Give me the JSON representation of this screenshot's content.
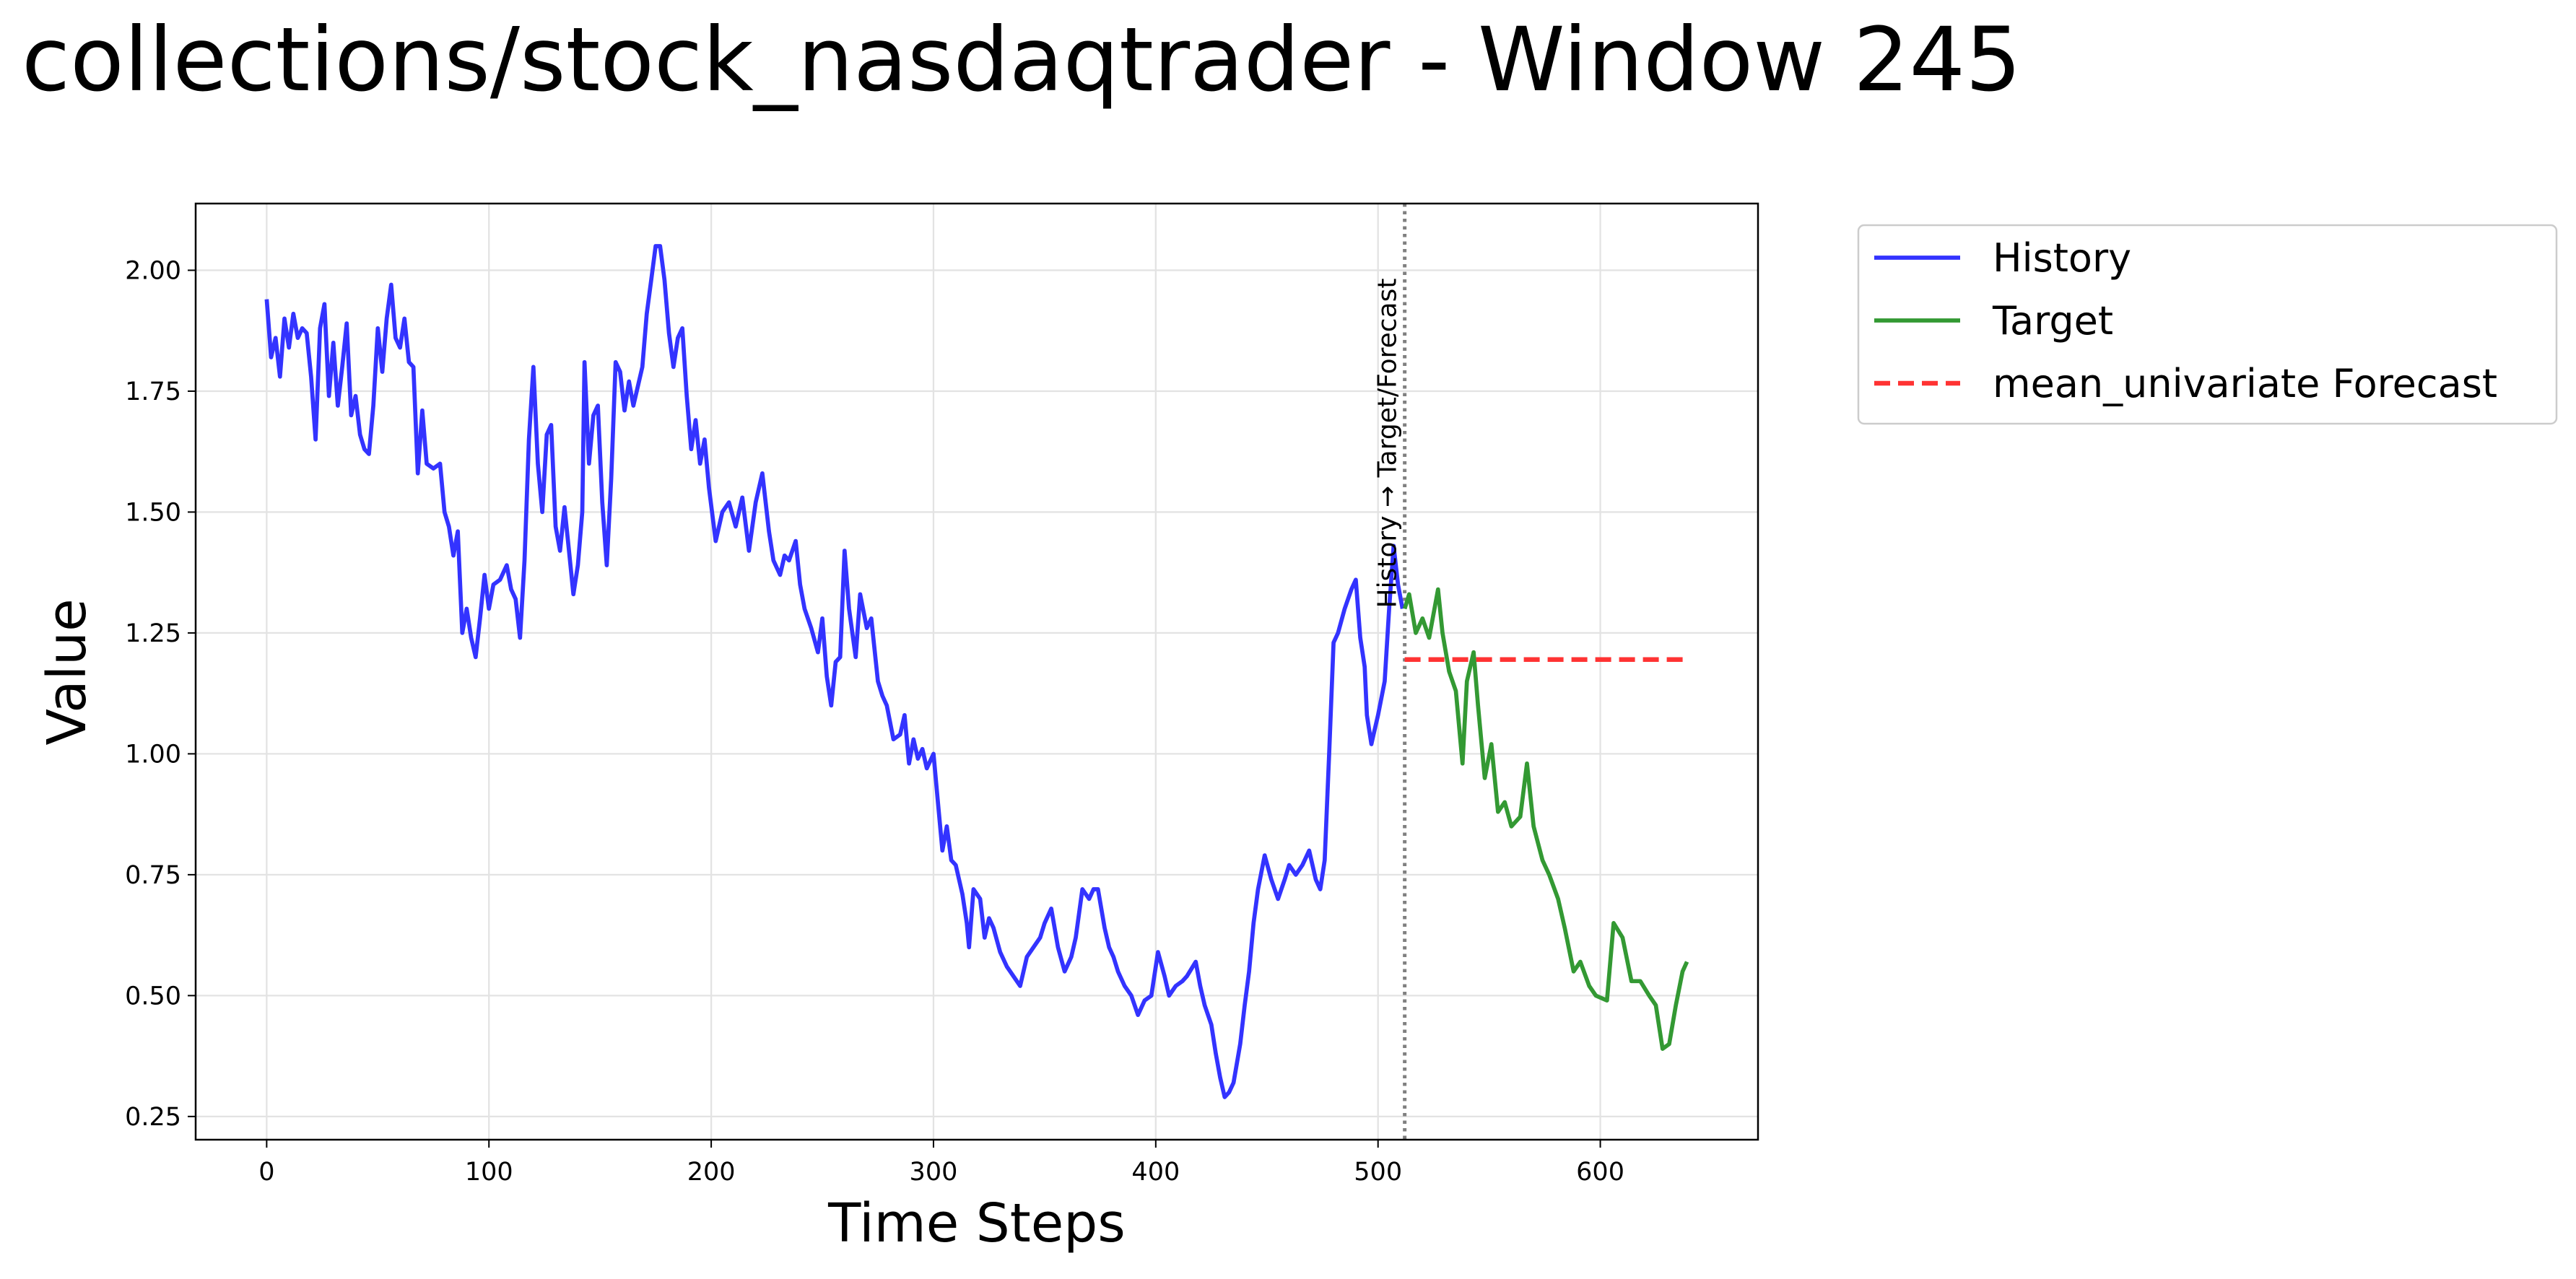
{
  "chart_data": {
    "type": "line",
    "title": "collections/stock_nasdaqtrader - Window 245",
    "x_label": "Time Steps",
    "y_label": "Value",
    "xlim": [
      -31.95,
      670.95
    ],
    "ylim": [
      0.202,
      2.138
    ],
    "xticks": [
      0,
      100,
      200,
      300,
      400,
      500,
      600
    ],
    "yticks": [
      {
        "value": 0.25,
        "label": "0.25"
      },
      {
        "value": 0.5,
        "label": "0.50"
      },
      {
        "value": 0.75,
        "label": "0.75"
      },
      {
        "value": 1.0,
        "label": "1.00"
      },
      {
        "value": 1.25,
        "label": "1.25"
      },
      {
        "value": 1.5,
        "label": "1.50"
      },
      {
        "value": 1.75,
        "label": "1.75"
      },
      {
        "value": 2.0,
        "label": "2.00"
      }
    ],
    "grid": true,
    "legend": "outside upper right",
    "vline": {
      "x": 512,
      "label": "History → Target/Forecast"
    },
    "series": [
      {
        "name": "History",
        "color": "#3333ff",
        "dash": false,
        "x": [
          0,
          2,
          4,
          6,
          8,
          10,
          12,
          14,
          16,
          18,
          20,
          22,
          24,
          26,
          28,
          30,
          32,
          34,
          36,
          38,
          40,
          42,
          44,
          46,
          48,
          50,
          52,
          54,
          56,
          58,
          60,
          62,
          64,
          66,
          68,
          70,
          72,
          75,
          78,
          80,
          82,
          84,
          86,
          88,
          90,
          92,
          94,
          96,
          98,
          100,
          102,
          105,
          108,
          110,
          112,
          114,
          116,
          118,
          120,
          122,
          124,
          126,
          128,
          130,
          132,
          134,
          136,
          138,
          140,
          142,
          143,
          145,
          147,
          149,
          151,
          153,
          155,
          157,
          159,
          161,
          163,
          165,
          167,
          169,
          171,
          173,
          175,
          177,
          179,
          181,
          183,
          185,
          187,
          189,
          191,
          193,
          195,
          197,
          199,
          202,
          205,
          208,
          211,
          214,
          217,
          220,
          223,
          226,
          228,
          231,
          233,
          235,
          238,
          240,
          242,
          245,
          248,
          250,
          252,
          254,
          256,
          258,
          260,
          262,
          265,
          267,
          270,
          272,
          275,
          277,
          279,
          282,
          285,
          287,
          289,
          291,
          293,
          295,
          297,
          300,
          302,
          304,
          306,
          308,
          310,
          313,
          315,
          316,
          318,
          321,
          323,
          325,
          327,
          330,
          333,
          336,
          339,
          342,
          345,
          348,
          350,
          353,
          356,
          359,
          362,
          364,
          367,
          370,
          372,
          374,
          377,
          379,
          381,
          383,
          386,
          389,
          392,
          395,
          398,
          401,
          404,
          406,
          409,
          412,
          414,
          418,
          420,
          422,
          425,
          427,
          429,
          431,
          433,
          435,
          438,
          440,
          442,
          444,
          446,
          449,
          452,
          455,
          458,
          460,
          463,
          466,
          469,
          472,
          474,
          476,
          478,
          480,
          482,
          485,
          488,
          490,
          492,
          494,
          495,
          497,
          498,
          500,
          503,
          505,
          507,
          509,
          511
        ],
        "values": [
          1.94,
          1.82,
          1.86,
          1.78,
          1.9,
          1.84,
          1.91,
          1.86,
          1.88,
          1.87,
          1.78,
          1.65,
          1.88,
          1.93,
          1.74,
          1.85,
          1.72,
          1.8,
          1.89,
          1.7,
          1.74,
          1.66,
          1.63,
          1.62,
          1.72,
          1.88,
          1.79,
          1.9,
          1.97,
          1.86,
          1.84,
          1.9,
          1.81,
          1.8,
          1.58,
          1.71,
          1.6,
          1.59,
          1.6,
          1.5,
          1.47,
          1.41,
          1.46,
          1.25,
          1.3,
          1.24,
          1.2,
          1.28,
          1.37,
          1.3,
          1.35,
          1.36,
          1.39,
          1.34,
          1.32,
          1.24,
          1.4,
          1.65,
          1.8,
          1.6,
          1.5,
          1.66,
          1.68,
          1.47,
          1.42,
          1.51,
          1.42,
          1.33,
          1.39,
          1.5,
          1.81,
          1.6,
          1.7,
          1.72,
          1.52,
          1.39,
          1.57,
          1.81,
          1.79,
          1.71,
          1.77,
          1.72,
          1.76,
          1.8,
          1.91,
          1.98,
          2.05,
          2.05,
          1.98,
          1.87,
          1.8,
          1.86,
          1.88,
          1.74,
          1.63,
          1.69,
          1.6,
          1.65,
          1.55,
          1.44,
          1.5,
          1.52,
          1.47,
          1.53,
          1.42,
          1.52,
          1.58,
          1.46,
          1.4,
          1.37,
          1.41,
          1.4,
          1.44,
          1.35,
          1.3,
          1.26,
          1.21,
          1.28,
          1.16,
          1.1,
          1.19,
          1.2,
          1.42,
          1.3,
          1.2,
          1.33,
          1.26,
          1.28,
          1.15,
          1.12,
          1.1,
          1.03,
          1.04,
          1.08,
          0.98,
          1.03,
          0.99,
          1.01,
          0.97,
          1.0,
          0.9,
          0.8,
          0.85,
          0.78,
          0.77,
          0.71,
          0.65,
          0.6,
          0.72,
          0.7,
          0.62,
          0.66,
          0.64,
          0.59,
          0.56,
          0.54,
          0.52,
          0.58,
          0.6,
          0.62,
          0.65,
          0.68,
          0.6,
          0.55,
          0.58,
          0.62,
          0.72,
          0.7,
          0.72,
          0.72,
          0.64,
          0.6,
          0.58,
          0.55,
          0.52,
          0.5,
          0.46,
          0.49,
          0.5,
          0.59,
          0.54,
          0.5,
          0.52,
          0.53,
          0.54,
          0.57,
          0.52,
          0.48,
          0.44,
          0.38,
          0.33,
          0.29,
          0.3,
          0.32,
          0.4,
          0.48,
          0.55,
          0.65,
          0.72,
          0.79,
          0.74,
          0.7,
          0.74,
          0.77,
          0.75,
          0.77,
          0.8,
          0.74,
          0.72,
          0.78,
          1.0,
          1.23,
          1.25,
          1.3,
          1.34,
          1.36,
          1.24,
          1.18,
          1.08,
          1.02,
          1.04,
          1.08,
          1.15,
          1.3,
          1.43,
          1.35,
          1.3
        ]
      },
      {
        "name": "Target",
        "color": "#339933",
        "dash": false,
        "x": [
          512,
          514,
          517,
          520,
          523,
          527,
          529,
          532,
          535,
          538,
          540,
          543,
          545,
          548,
          551,
          554,
          557,
          560,
          564,
          567,
          570,
          574,
          577,
          581,
          584,
          588,
          591,
          595,
          598,
          603,
          606,
          610,
          614,
          618,
          622,
          625,
          628,
          631,
          634,
          637,
          639
        ],
        "values": [
          1.3,
          1.33,
          1.25,
          1.28,
          1.24,
          1.34,
          1.25,
          1.17,
          1.13,
          0.98,
          1.15,
          1.21,
          1.1,
          0.95,
          1.02,
          0.88,
          0.9,
          0.85,
          0.87,
          0.98,
          0.85,
          0.78,
          0.75,
          0.7,
          0.64,
          0.55,
          0.57,
          0.52,
          0.5,
          0.49,
          0.65,
          0.62,
          0.53,
          0.53,
          0.5,
          0.48,
          0.39,
          0.4,
          0.48,
          0.55,
          0.57
        ]
      },
      {
        "name": "mean_univariate Forecast",
        "color": "#ff3333",
        "dash": true,
        "x": [
          512,
          639
        ],
        "values": [
          1.195,
          1.195
        ]
      }
    ]
  }
}
